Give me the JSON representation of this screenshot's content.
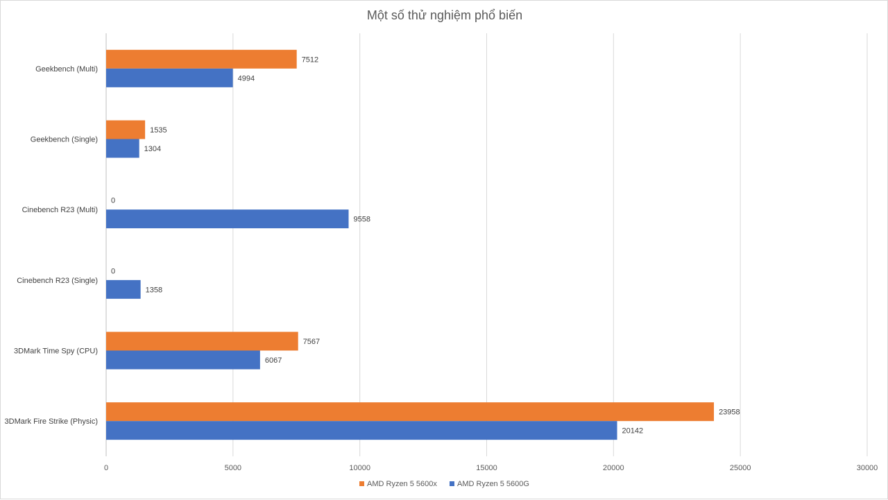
{
  "chart_data": {
    "type": "bar",
    "orientation": "horizontal",
    "title": "Một số thử nghiệm phổ biến",
    "categories": [
      "Geekbench (Multi)",
      "Geekbench (Single)",
      "Cinebench R23 (Multi)",
      "Cinebench R23 (Single)",
      "3DMark Time Spy (CPU)",
      "3DMark Fire Strike (Physic)"
    ],
    "series": [
      {
        "name": "AMD Ryzen 5 5600x",
        "color": "#ed7d31",
        "values": [
          7512,
          1535,
          0,
          0,
          7567,
          23958
        ]
      },
      {
        "name": "AMD Ryzen 5 5600G",
        "color": "#4472c4",
        "values": [
          4994,
          1304,
          9558,
          1358,
          6067,
          20142
        ]
      }
    ],
    "xlim": [
      0,
      30000
    ],
    "xticks": [
      0,
      5000,
      10000,
      15000,
      20000,
      25000,
      30000
    ],
    "xlabel": "",
    "ylabel": "",
    "grid": true,
    "legend": "bottom",
    "data_labels": true
  }
}
